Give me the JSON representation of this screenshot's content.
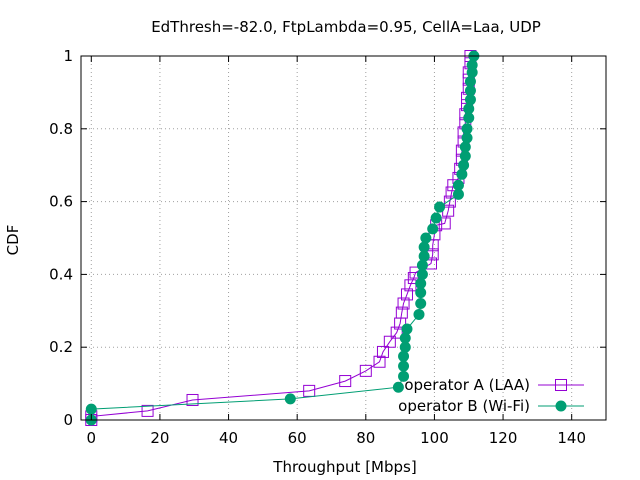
{
  "chart_data": {
    "type": "line",
    "title": "EdThresh=-82.0, FtpLambda=0.95, CellA=Laa, UDP",
    "xlabel": "Throughput [Mbps]",
    "ylabel": "CDF",
    "xlim": [
      -3,
      150
    ],
    "ylim": [
      0,
      1
    ],
    "xticks": [
      0,
      20,
      40,
      60,
      80,
      100,
      120,
      140
    ],
    "yticks": [
      0,
      0.2,
      0.4,
      0.6,
      0.8,
      1
    ],
    "grid": true,
    "legend_position": "bottom-right",
    "series": [
      {
        "name": "operator A (LAA)",
        "color": "#9400d3",
        "marker": "open-square",
        "points": [
          [
            0,
            0.0
          ],
          [
            0,
            0.01
          ],
          [
            16.4,
            0.025
          ],
          [
            29.5,
            0.055
          ],
          [
            63.5,
            0.08
          ],
          [
            74,
            0.107
          ],
          [
            80,
            0.135
          ],
          [
            84,
            0.16
          ],
          [
            85,
            0.187
          ],
          [
            87,
            0.215
          ],
          [
            89,
            0.24
          ],
          [
            90,
            0.265
          ],
          [
            90.5,
            0.295
          ],
          [
            91,
            0.32
          ],
          [
            92,
            0.345
          ],
          [
            93,
            0.37
          ],
          [
            94,
            0.39
          ],
          [
            94.5,
            0.405
          ],
          [
            99,
            0.43
          ],
          [
            99.5,
            0.455
          ],
          [
            99.5,
            0.48
          ],
          [
            100,
            0.51
          ],
          [
            100.5,
            0.535
          ],
          [
            103,
            0.54
          ],
          [
            104,
            0.575
          ],
          [
            104.5,
            0.6
          ],
          [
            105,
            0.625
          ],
          [
            105.5,
            0.645
          ],
          [
            107,
            0.665
          ],
          [
            107.5,
            0.69
          ],
          [
            108,
            0.715
          ],
          [
            108,
            0.74
          ],
          [
            108.5,
            0.765
          ],
          [
            108.5,
            0.79
          ],
          [
            109,
            0.815
          ],
          [
            109,
            0.84
          ],
          [
            109.5,
            0.865
          ],
          [
            109.5,
            0.885
          ],
          [
            110,
            0.91
          ],
          [
            110,
            0.935
          ],
          [
            110,
            0.955
          ],
          [
            110.5,
            0.98
          ],
          [
            110.5,
            1.0
          ]
        ]
      },
      {
        "name": "operator B (Wi-Fi)",
        "color": "#009e73",
        "marker": "filled-circle",
        "points": [
          [
            0,
            0.0
          ],
          [
            0,
            0.03
          ],
          [
            58,
            0.058
          ],
          [
            89.5,
            0.09
          ],
          [
            91,
            0.12
          ],
          [
            91,
            0.148
          ],
          [
            91,
            0.175
          ],
          [
            91.5,
            0.2
          ],
          [
            91.5,
            0.225
          ],
          [
            92,
            0.25
          ],
          [
            95.5,
            0.29
          ],
          [
            96,
            0.32
          ],
          [
            96,
            0.35
          ],
          [
            96,
            0.375
          ],
          [
            96.5,
            0.4
          ],
          [
            96.5,
            0.425
          ],
          [
            97,
            0.45
          ],
          [
            97,
            0.475
          ],
          [
            97.5,
            0.5
          ],
          [
            99.5,
            0.525
          ],
          [
            100.5,
            0.555
          ],
          [
            101.5,
            0.585
          ],
          [
            107,
            0.62
          ],
          [
            107,
            0.645
          ],
          [
            108,
            0.675
          ],
          [
            108.5,
            0.7
          ],
          [
            109,
            0.725
          ],
          [
            109,
            0.75
          ],
          [
            109.5,
            0.775
          ],
          [
            109.5,
            0.8
          ],
          [
            110,
            0.83
          ],
          [
            110,
            0.855
          ],
          [
            110.5,
            0.88
          ],
          [
            110.5,
            0.905
          ],
          [
            110.5,
            0.93
          ],
          [
            111,
            0.955
          ],
          [
            111,
            0.975
          ],
          [
            111.5,
            1.0
          ]
        ]
      }
    ]
  }
}
